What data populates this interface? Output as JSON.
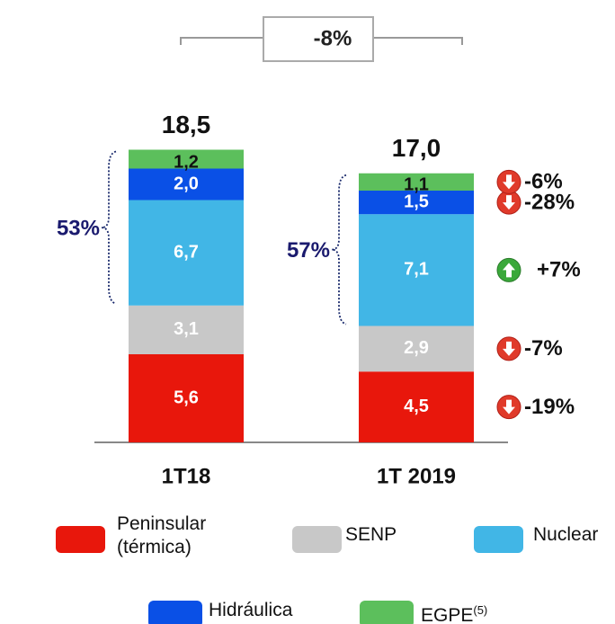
{
  "chart_data": {
    "type": "stacked_bar",
    "categories": [
      "1T18",
      "1T 2019"
    ],
    "series": [
      {
        "name": "Peninsular (térmica)",
        "color": "#e8170c",
        "values": [
          5.6,
          4.5
        ],
        "value_labels": [
          "5,6",
          "4,5"
        ],
        "change": "-19%"
      },
      {
        "name": "SENP",
        "color": "#c8c8c8",
        "values": [
          3.1,
          2.9
        ],
        "value_labels": [
          "3,1",
          "2,9"
        ],
        "change": "-7%"
      },
      {
        "name": "Nuclear",
        "color": "#41b6e6",
        "values": [
          6.7,
          7.1
        ],
        "value_labels": [
          "6,7",
          "7,1"
        ],
        "change": "+7%"
      },
      {
        "name": "Hidráulica",
        "color": "#0a50e6",
        "values": [
          2.0,
          1.5
        ],
        "value_labels": [
          "2,0",
          "1,5"
        ],
        "change": "-28%"
      },
      {
        "name": "EGPE",
        "name_superscript": "(5)",
        "color": "#5cbf5c",
        "values": [
          1.2,
          1.1
        ],
        "value_labels": [
          "1,2",
          "1,1"
        ],
        "change": "-6%"
      }
    ],
    "totals": [
      18.5,
      17.0
    ],
    "total_labels": [
      "18,5",
      "17,0"
    ],
    "total_change": "-8%",
    "share_labels": [
      "53%",
      "57%"
    ],
    "ylim": [
      0,
      20
    ]
  }
}
